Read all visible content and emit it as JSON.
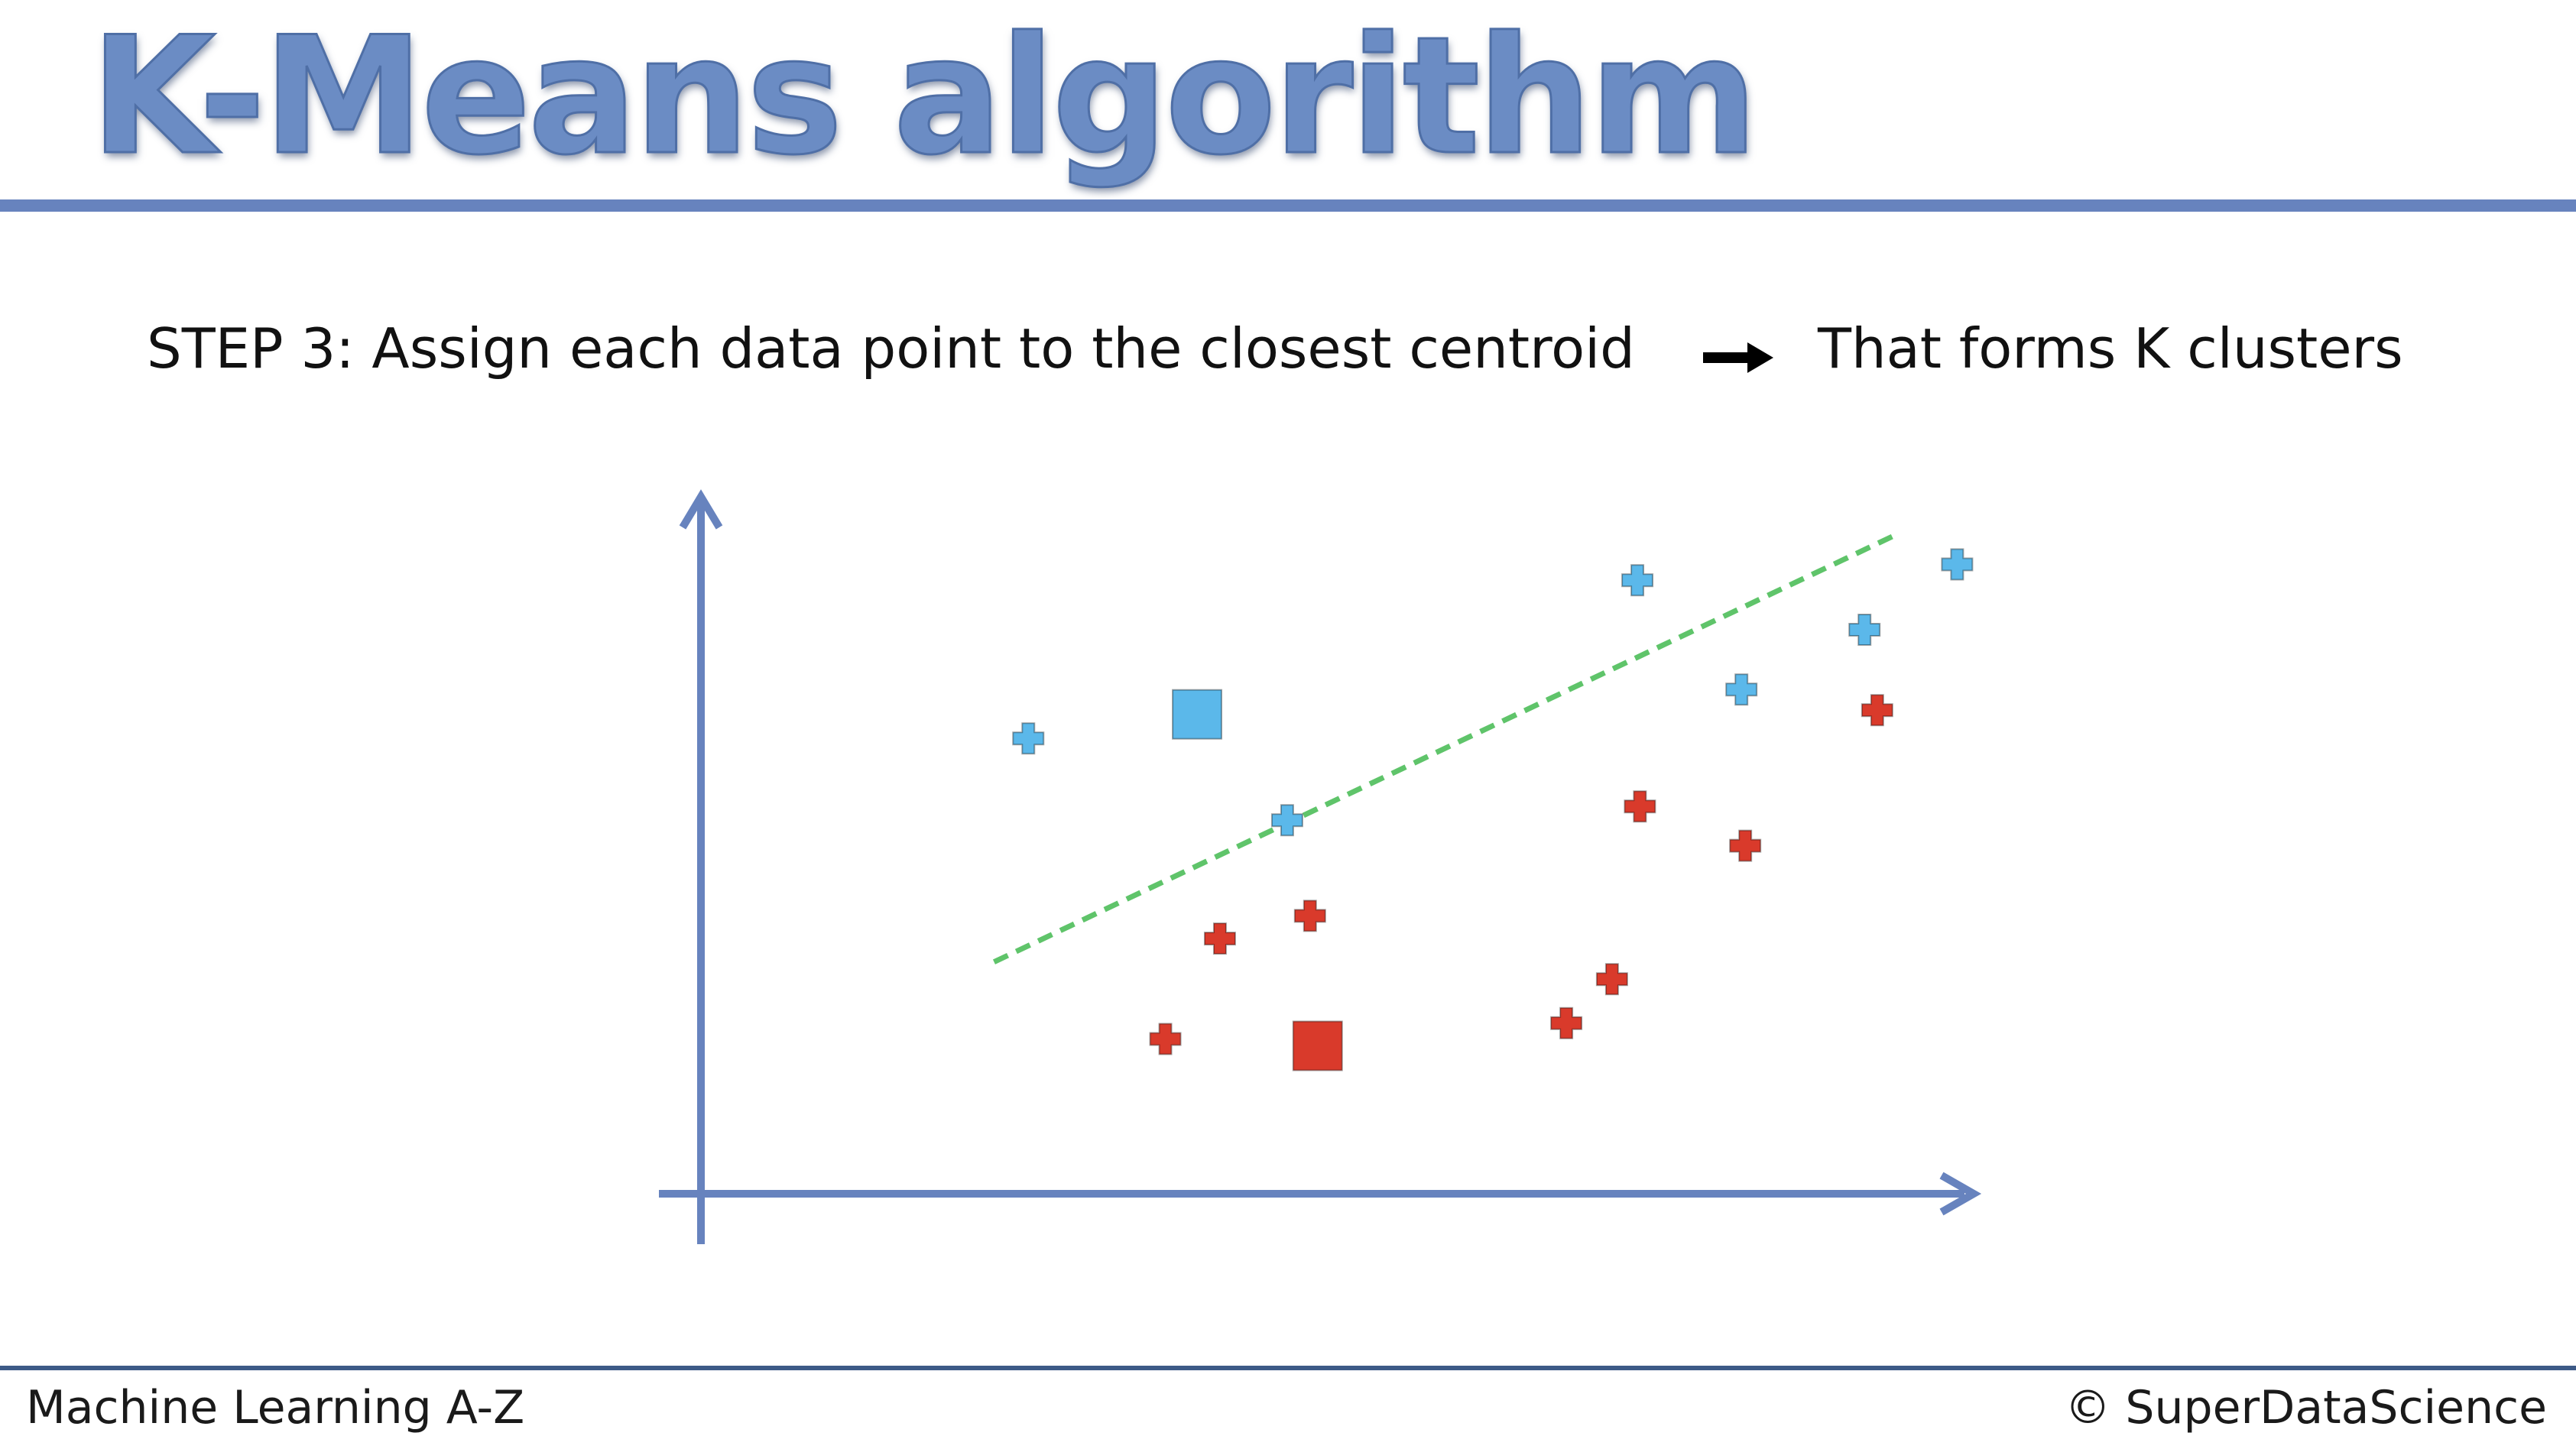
{
  "slide": {
    "title": "K-Means algorithm",
    "step_text": "STEP 3: Assign each data point to the closest centroid",
    "step_conclusion": "That forms K clusters"
  },
  "footer": {
    "course": "Machine Learning A-Z",
    "copyright": "© SuperDataScience"
  },
  "colors": {
    "title": "#6b8cc4",
    "rule": "#6783be",
    "axis": "#6783be",
    "cluster_blue": "#5bb8ea",
    "cluster_red": "#d93a2b",
    "boundary": "#5fc46a"
  },
  "icons": [
    "arrow-right-icon",
    "x-axis-arrow-icon",
    "y-axis-arrow-icon"
  ],
  "diagram": {
    "boundary_style": "dashed",
    "blue_points": [
      [
        0.258,
        0.662
      ],
      [
        0.462,
        0.543
      ],
      [
        0.738,
        0.892
      ],
      [
        0.82,
        0.733
      ],
      [
        0.917,
        0.82
      ],
      [
        0.99,
        0.915
      ]
    ],
    "red_points": [
      [
        0.366,
        0.225
      ],
      [
        0.409,
        0.371
      ],
      [
        0.48,
        0.404
      ],
      [
        0.682,
        0.248
      ],
      [
        0.718,
        0.312
      ],
      [
        0.74,
        0.563
      ],
      [
        0.823,
        0.506
      ],
      [
        0.927,
        0.703
      ]
    ],
    "blue_centroid": [
      0.391,
      0.697
    ],
    "red_centroid": [
      0.486,
      0.215
    ],
    "boundary_line": [
      [
        0.231,
        0.337
      ],
      [
        0.944,
        0.96
      ]
    ]
  }
}
